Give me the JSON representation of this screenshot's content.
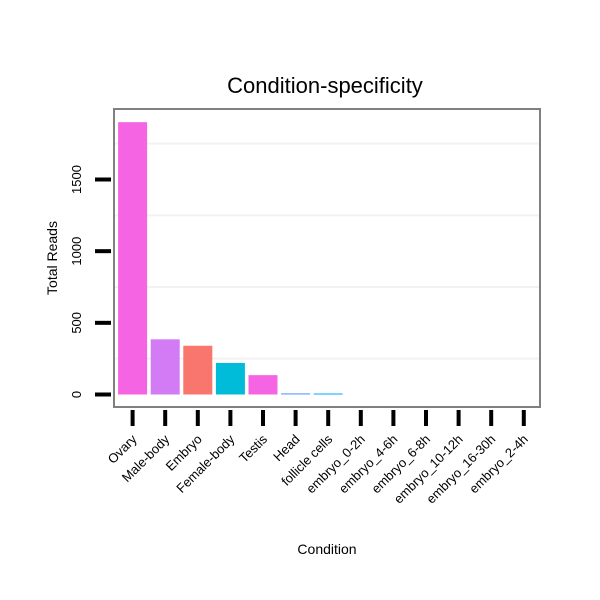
{
  "chart_data": {
    "type": "bar",
    "title": "Condition-specificity",
    "xlabel": "Condition",
    "ylabel": "Total Reads",
    "categories": [
      "Ovary",
      "Male-body",
      "Embryo",
      "Female-body",
      "Testis",
      "Head",
      "follicle cells",
      "embryo_0-2h",
      "embryo_4-6h",
      "embryo_6-8h",
      "embryo_10-12h",
      "embryo_16-30h",
      "embryo_2-4h"
    ],
    "values": [
      1900,
      385,
      340,
      220,
      135,
      8,
      6,
      0,
      0,
      0,
      0,
      0,
      0
    ],
    "colors": [
      "#F564E3",
      "#D27BF5",
      "#F8766D",
      "#00BCD8",
      "#F564E3",
      "#619CFF",
      "#00A9FF",
      "#D27BF5",
      "#D27BF5",
      "#D27BF5",
      "#D27BF5",
      "#D27BF5",
      "#D27BF5"
    ],
    "yticks": [
      0,
      500,
      1000,
      1500
    ],
    "ylim": [
      -100,
      2000
    ],
    "grid": true,
    "legend": "none"
  }
}
